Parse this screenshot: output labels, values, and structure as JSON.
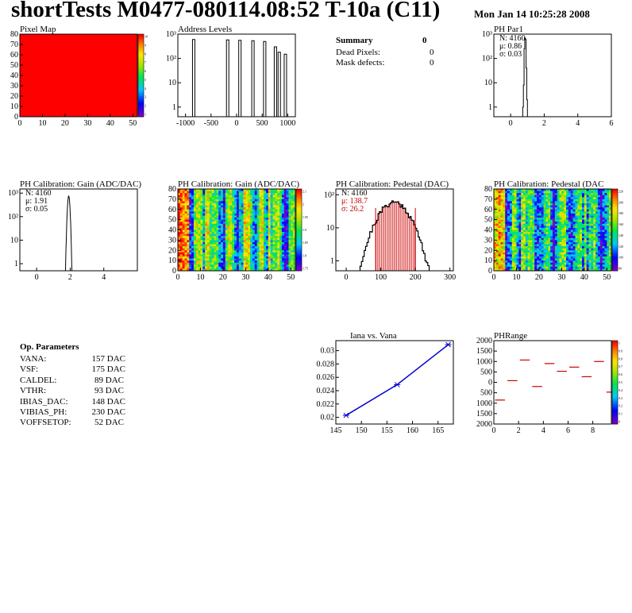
{
  "header": {
    "title": "shortTests M0477-080114.08:52 T-10a (C11)",
    "date": "Mon Jan 14 10:25:28 2008"
  },
  "summary": {
    "title": "Summary",
    "title_value": "0",
    "rows": [
      {
        "label": "Dead Pixels:",
        "value": "0"
      },
      {
        "label": "Mask defects:",
        "value": "0"
      }
    ]
  },
  "op_parameters": {
    "title": "Op. Parameters",
    "rows": [
      {
        "label": "VANA:",
        "value": "157 DAC"
      },
      {
        "label": "VSF:",
        "value": "175 DAC"
      },
      {
        "label": "CALDEL:",
        "value": "89 DAC"
      },
      {
        "label": "VTHR:",
        "value": "93 DAC"
      },
      {
        "label": "IBIAS_DAC:",
        "value": "148 DAC"
      },
      {
        "label": "VIBIAS_PH:",
        "value": "230 DAC"
      },
      {
        "label": "VOFFSETOP:",
        "value": "52 DAC"
      }
    ]
  },
  "chart_data": [
    {
      "id": "pixel-map",
      "type": "heatmap",
      "title": "Pixel Map",
      "xlim": [
        0,
        52
      ],
      "ylim": [
        0,
        80
      ],
      "xticks": [
        0,
        10,
        20,
        30,
        40,
        50
      ],
      "yticks": [
        0,
        10,
        20,
        30,
        40,
        50,
        60,
        70,
        80
      ],
      "uniform_value": 10,
      "zlim": [
        0,
        10
      ],
      "zticks": [
        "10",
        "9",
        "8",
        "7",
        "6",
        "5",
        "4",
        "3",
        "2",
        "1"
      ]
    },
    {
      "id": "address-levels",
      "type": "bar",
      "title": "Address Levels",
      "xlim": [
        -1150,
        1150
      ],
      "log_y": true,
      "ylim": [
        0.4,
        1000
      ],
      "xticks": [
        {
          "v": -1000,
          "t": "-1000"
        },
        {
          "v": -500,
          "t": "-500"
        },
        {
          "v": 0,
          "t": "0"
        },
        {
          "v": 500,
          "t": "500"
        },
        {
          "v": 1000,
          "t": "1000"
        }
      ],
      "yticks": [
        {
          "v": 1,
          "t": "1"
        },
        {
          "v": 10,
          "t": "10"
        },
        {
          "v": 100,
          "t": "10²"
        },
        {
          "v": 1000,
          "t": "10³"
        }
      ],
      "peaks": [
        {
          "x": -840,
          "y": 600
        },
        {
          "x": -175,
          "y": 580
        },
        {
          "x": 65,
          "y": 560
        },
        {
          "x": 320,
          "y": 540
        },
        {
          "x": 550,
          "y": 500
        },
        {
          "x": 760,
          "y": 300
        },
        {
          "x": 835,
          "y": 180
        },
        {
          "x": 955,
          "y": 150
        }
      ]
    },
    {
      "id": "ph-par1",
      "type": "bar",
      "title": "PH Par1",
      "xlim": [
        -1,
        6
      ],
      "log_y": true,
      "ylim": [
        0.4,
        1000
      ],
      "xticks": [
        {
          "v": 0,
          "t": "0"
        },
        {
          "v": 2,
          "t": "2"
        },
        {
          "v": 4,
          "t": "4"
        },
        {
          "v": 6,
          "t": "6"
        }
      ],
      "yticks": [
        {
          "v": 1,
          "t": "1"
        },
        {
          "v": 10,
          "t": "10"
        },
        {
          "v": 100,
          "t": "10²"
        },
        {
          "v": 1000,
          "t": "10³"
        }
      ],
      "stats": [
        "N: 4160",
        "μ: 0.86",
        "σ: 0.03"
      ],
      "bins": [
        [
          0.72,
          0.76,
          1
        ],
        [
          0.76,
          0.8,
          8
        ],
        [
          0.8,
          0.84,
          250
        ],
        [
          0.84,
          0.88,
          700
        ],
        [
          0.88,
          0.92,
          600
        ],
        [
          0.92,
          0.96,
          40
        ],
        [
          0.96,
          1.0,
          2
        ]
      ]
    },
    {
      "id": "gain",
      "type": "line",
      "title": "PH Calibration: Gain (ADC/DAC)",
      "xlim": [
        -1,
        6
      ],
      "log_y": true,
      "ylim": [
        0.5,
        1500
      ],
      "xticks": [
        {
          "v": 0,
          "t": "0"
        },
        {
          "v": 2,
          "t": "2"
        },
        {
          "v": 4,
          "t": "4"
        }
      ],
      "yticks": [
        {
          "v": 1,
          "t": "1"
        },
        {
          "v": 10,
          "t": "10"
        },
        {
          "v": 100,
          "t": "10²"
        },
        {
          "v": 1000,
          "t": "10³"
        }
      ],
      "stats": [
        "N: 4160",
        "μ: 1.91",
        "σ: 0.05"
      ],
      "mean": 1.91,
      "sigma": 0.05,
      "peak": 750
    },
    {
      "id": "gain-map",
      "type": "heatmap",
      "title": "PH Calibration: Gain (ADC/DAC)",
      "xlim": [
        0,
        52
      ],
      "ylim": [
        0,
        80
      ],
      "xticks": [
        0,
        10,
        20,
        30,
        40,
        50
      ],
      "yticks": [
        0,
        10,
        20,
        30,
        40,
        50,
        60,
        70,
        80
      ],
      "zticks": [
        "2.1",
        "2",
        "1.95",
        "1.9",
        "1.85",
        "1.8",
        "1.75"
      ]
    },
    {
      "id": "pedestal",
      "type": "bar",
      "title": "PH Calibration: Pedestal (DAC)",
      "xlim": [
        -30,
        310
      ],
      "log_y": true,
      "ylim": [
        0.5,
        150
      ],
      "xticks": [
        {
          "v": 0,
          "t": "0"
        },
        {
          "v": 100,
          "t": "100"
        },
        {
          "v": 200,
          "t": "200"
        },
        {
          "v": 300,
          "t": "300"
        }
      ],
      "yticks": [
        {
          "v": 1,
          "t": "1"
        },
        {
          "v": 10,
          "t": "10"
        },
        {
          "v": 100,
          "t": "10²"
        }
      ],
      "stats": [
        "N: 4160",
        "μ: 138.7",
        "σ: 26.2"
      ],
      "mean": 138.7,
      "sigma": 26.2,
      "peak": 60,
      "fit_range": [
        85,
        200
      ],
      "fit_color": "#cc0000"
    },
    {
      "id": "pedestal-map",
      "type": "heatmap",
      "title": "PH Calibration: Pedestal (DAC",
      "xlim": [
        0,
        52
      ],
      "ylim": [
        0,
        80
      ],
      "xticks": [
        0,
        10,
        20,
        30,
        40,
        50
      ],
      "yticks": [
        0,
        10,
        20,
        30,
        40,
        50,
        60,
        70,
        80
      ],
      "zticks": [
        "220",
        "200",
        "180",
        "160",
        "140",
        "120",
        "100",
        "80"
      ]
    },
    {
      "id": "iana-vana",
      "type": "line",
      "title": "Iana vs. Vana",
      "xlim": [
        145,
        168
      ],
      "ylim": [
        0.019,
        0.0315
      ],
      "xticks": [
        {
          "v": 145,
          "t": "145"
        },
        {
          "v": 150,
          "t": "150"
        },
        {
          "v": 155,
          "t": "155"
        },
        {
          "v": 160,
          "t": "160"
        },
        {
          "v": 165,
          "t": "165"
        }
      ],
      "yticks": [
        {
          "v": 0.02,
          "t": "0.02"
        },
        {
          "v": 0.022,
          "t": "0.022"
        },
        {
          "v": 0.024,
          "t": "0.024"
        },
        {
          "v": 0.026,
          "t": "0.026"
        },
        {
          "v": 0.028,
          "t": "0.028"
        },
        {
          "v": 0.03,
          "t": "0.03"
        }
      ],
      "points": [
        {
          "x": 147,
          "y": 0.0203
        },
        {
          "x": 157,
          "y": 0.0249
        },
        {
          "x": 167,
          "y": 0.0309
        }
      ],
      "color": "#0000cc"
    },
    {
      "id": "ph-range",
      "type": "scatter",
      "title": "PHRange",
      "xlim": [
        0,
        9.5
      ],
      "ylim": [
        -2000,
        2000
      ],
      "xticks": [
        {
          "v": 0,
          "t": "0"
        },
        {
          "v": 2,
          "t": "2"
        },
        {
          "v": 4,
          "t": "4"
        },
        {
          "v": 6,
          "t": "6"
        },
        {
          "v": 8,
          "t": "8"
        }
      ],
      "yticks": [
        {
          "v": 2000,
          "t": "2000"
        },
        {
          "v": 1500,
          "t": "1500"
        },
        {
          "v": 1000,
          "t": "1000"
        },
        {
          "v": 500,
          "t": "500"
        },
        {
          "v": 0,
          "t": "0"
        },
        {
          "v": -500,
          "t": "500"
        },
        {
          "v": -1000,
          "t": "1000"
        },
        {
          "v": -1500,
          "t": "1500"
        },
        {
          "v": -2000,
          "t": "2000"
        }
      ],
      "segments": [
        {
          "x": 0,
          "y": -850
        },
        {
          "x": 1,
          "y": 80
        },
        {
          "x": 2,
          "y": 1070
        },
        {
          "x": 3,
          "y": -200
        },
        {
          "x": 4,
          "y": 900
        },
        {
          "x": 5,
          "y": 530
        },
        {
          "x": 6,
          "y": 730
        },
        {
          "x": 7,
          "y": 270
        },
        {
          "x": 8,
          "y": 1000
        },
        {
          "x": 9,
          "y": -470
        }
      ],
      "color": "#cc0000",
      "zticks": [
        "1",
        "0.9",
        "0.8",
        "0.7",
        "0.6",
        "0.5",
        "0.4",
        "0.3",
        "0.2",
        "0.1",
        "0"
      ]
    }
  ]
}
